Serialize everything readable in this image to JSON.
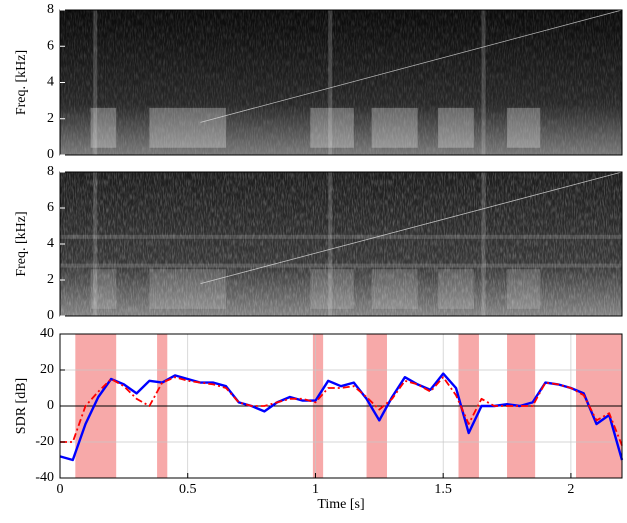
{
  "chart_data": [
    {
      "type": "spectrogram",
      "ylabel": "Freq. [kHz]",
      "xlim": [
        0,
        2.2
      ],
      "ylim": [
        0,
        8
      ],
      "yticks": [
        0,
        2,
        4,
        6,
        8
      ]
    },
    {
      "type": "spectrogram",
      "ylabel": "Freq. [kHz]",
      "xlim": [
        0,
        2.2
      ],
      "ylim": [
        0,
        8
      ],
      "yticks": [
        0,
        2,
        4,
        6,
        8
      ]
    },
    {
      "type": "line",
      "ylabel": "SDR [dB]",
      "xlabel": "Time [s]",
      "xlim": [
        0,
        2.2
      ],
      "ylim": [
        -40,
        40
      ],
      "xticks": [
        0,
        0.5,
        1,
        1.5,
        2
      ],
      "yticks": [
        -40,
        -20,
        0,
        20,
        40
      ],
      "grid": true,
      "highlight_color": "#f7a9a9",
      "highlights": [
        [
          0.06,
          0.22
        ],
        [
          0.38,
          0.42
        ],
        [
          0.99,
          1.03
        ],
        [
          1.2,
          1.28
        ],
        [
          1.56,
          1.64
        ],
        [
          1.75,
          1.86
        ],
        [
          2.02,
          2.2
        ]
      ],
      "x": [
        0,
        0.05,
        0.1,
        0.15,
        0.2,
        0.25,
        0.3,
        0.35,
        0.4,
        0.45,
        0.5,
        0.55,
        0.6,
        0.65,
        0.7,
        0.75,
        0.8,
        0.85,
        0.9,
        0.95,
        1,
        1.05,
        1.1,
        1.15,
        1.2,
        1.25,
        1.3,
        1.35,
        1.4,
        1.45,
        1.5,
        1.55,
        1.6,
        1.65,
        1.7,
        1.75,
        1.8,
        1.85,
        1.9,
        1.95,
        2,
        2.05,
        2.1,
        2.15,
        2.2
      ],
      "series": [
        {
          "color": "#0000ff",
          "dash": "solid",
          "values": [
            -28,
            -30,
            -10,
            5,
            15,
            12,
            7,
            14,
            13,
            17,
            15,
            13,
            13,
            11,
            2,
            0,
            -3,
            2,
            5,
            3,
            3,
            14,
            11,
            13,
            4,
            -8,
            5,
            16,
            12,
            9,
            18,
            10,
            -15,
            0,
            0,
            1,
            0,
            2,
            13,
            12,
            10,
            7,
            -10,
            -5,
            -30
          ]
        },
        {
          "color": "#ff0000",
          "dash": "dashdot",
          "values": [
            -20,
            -20,
            0,
            8,
            15,
            11,
            4,
            0,
            13,
            16,
            14,
            13,
            12,
            10,
            2,
            0,
            0,
            2,
            4,
            4,
            2,
            10,
            10,
            11,
            5,
            -2,
            4,
            14,
            12,
            8,
            16,
            6,
            -10,
            4,
            0,
            0,
            0,
            0,
            13,
            12,
            10,
            6,
            -8,
            -4,
            -22
          ]
        }
      ]
    }
  ]
}
